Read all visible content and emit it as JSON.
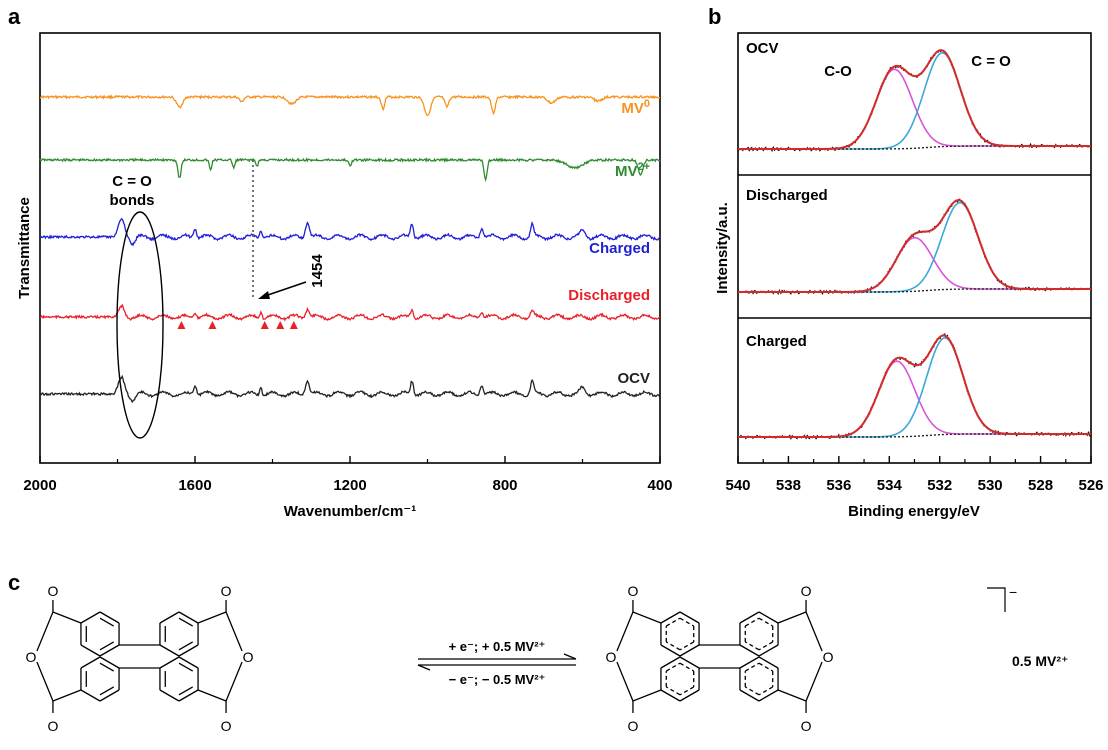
{
  "panels": {
    "a_label": "a",
    "b_label": "b",
    "c_label": "c"
  },
  "chart_data": [
    {
      "panel": "a",
      "type": "line",
      "xlabel": "Wavenumber/cm⁻¹",
      "ylabel": "Transmittance",
      "xlim": [
        2000,
        400
      ],
      "x_ticks": [
        "2000",
        "1600",
        "1200",
        "800",
        "400"
      ],
      "series": [
        {
          "name": "MV⁰",
          "color": "#f7931e",
          "label_main": "MV",
          "label_sup": "0"
        },
        {
          "name": "MV²⁺",
          "color": "#2e8b2e",
          "label_main": "MV",
          "label_sup": "2+"
        },
        {
          "name": "Charged",
          "color": "#1f1fd6",
          "label_main": "Charged",
          "label_sup": ""
        },
        {
          "name": "Discharged",
          "color": "#e8202a",
          "label_main": "Discharged",
          "label_sup": ""
        },
        {
          "name": "OCV",
          "color": "#222222",
          "label_main": "OCV",
          "label_sup": ""
        }
      ],
      "annotations": {
        "ellipse_label_1": "C = O",
        "ellipse_label_2": "bonds",
        "peak_label": "1454",
        "peak_x": 1454,
        "triangle_x": [
          1635,
          1555,
          1420,
          1380,
          1345
        ]
      }
    },
    {
      "panel": "b",
      "type": "line",
      "xlabel": "Binding energy/eV",
      "ylabel": "Intensity/a.u.",
      "xlim": [
        540,
        526
      ],
      "x_ticks": [
        "540",
        "538",
        "536",
        "534",
        "532",
        "530",
        "528",
        "526"
      ],
      "subpanels": [
        {
          "title": "OCV",
          "peaks": [
            {
              "label": "C-O",
              "center": 533.8,
              "height": 0.78,
              "color": "#d855d8"
            },
            {
              "label": "C = O",
              "center": 531.9,
              "height": 0.92,
              "color": "#3ba8d8"
            }
          ]
        },
        {
          "title": "Discharged",
          "peaks": [
            {
              "label": "",
              "center": 533.0,
              "height": 0.52,
              "color": "#d855d8"
            },
            {
              "label": "",
              "center": 531.2,
              "height": 0.84,
              "color": "#3ba8d8"
            }
          ]
        },
        {
          "title": "Charged",
          "peaks": [
            {
              "label": "",
              "center": 533.7,
              "height": 0.72,
              "color": "#d855d8"
            },
            {
              "label": "",
              "center": 531.8,
              "height": 0.92,
              "color": "#3ba8d8"
            }
          ]
        }
      ],
      "colors": {
        "envelope": "#d42a2a",
        "raw": "#111111",
        "baseline": "#222222"
      }
    }
  ],
  "panel_c": {
    "arrow_top": "+ e⁻; + 0.5 MV²⁺",
    "arrow_bottom": "− e⁻; − 0.5 MV²⁺",
    "counter_ion": "0.5 MV²⁺",
    "charge": "−",
    "atom_O": "O"
  }
}
